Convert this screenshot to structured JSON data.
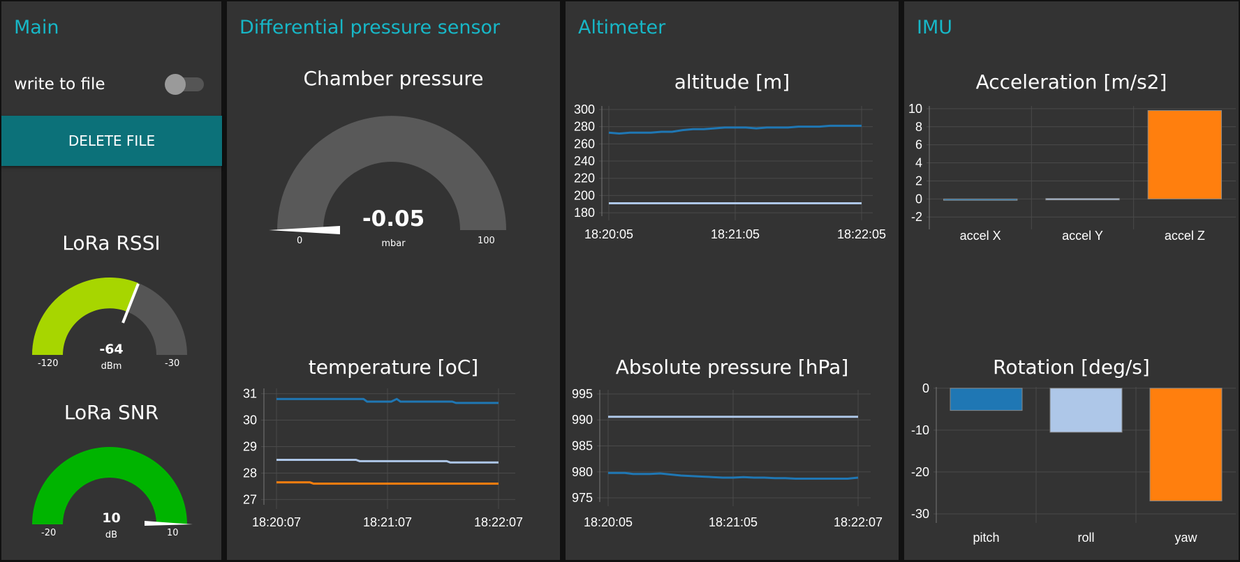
{
  "main": {
    "title": "Main",
    "toggle": {
      "label": "write to file",
      "on": false
    },
    "delete_button": "DELETE FILE",
    "rssi_gauge": {
      "title": "LoRa RSSI",
      "value": "-64",
      "unit": "dBm",
      "min": "-120",
      "max": "-30",
      "fill_color": "#a7d600",
      "track_color": "#555555"
    },
    "snr_gauge": {
      "title": "LoRa SNR",
      "value": "10",
      "unit": "dB",
      "min": "-20",
      "max": "10",
      "fill_color": "#00b400",
      "track_color": "#555555"
    }
  },
  "diff": {
    "title": "Differential pressure sensor",
    "pressure_gauge": {
      "title": "Chamber pressure",
      "value": "-0.05",
      "unit": "mbar",
      "min": "0",
      "max": "100",
      "track_color": "#595959"
    },
    "temperature_chart_title": "temperature [oC]"
  },
  "alt": {
    "title": "Altimeter",
    "altitude_chart_title": "altitude [m]",
    "pressure_chart_title": "Absolute pressure [hPa]"
  },
  "imu": {
    "title": "IMU",
    "accel_chart_title": "Acceleration [m/s2]",
    "rotation_chart_title": "Rotation [deg/s]"
  },
  "colors": {
    "accent": "#17b7c7",
    "button": "#0c7179",
    "series1": "#1f77b4",
    "series2": "#aec7e8",
    "series3": "#ff7f0e"
  },
  "chart_data": [
    {
      "id": "temperature",
      "type": "line",
      "title": "temperature [oC]",
      "ylim": [
        26.8,
        31.2
      ],
      "yticks": [
        27,
        28,
        29,
        30,
        31
      ],
      "xticks": [
        "18:20:07",
        "18:21:07",
        "18:22:07"
      ],
      "series": [
        {
          "color": "#1f77b4",
          "x": [
            0,
            47,
            49,
            62,
            65,
            67,
            95,
            97,
            120
          ],
          "values": [
            30.8,
            30.8,
            30.7,
            30.7,
            30.8,
            30.7,
            30.7,
            30.65,
            30.65
          ]
        },
        {
          "color": "#aec7e8",
          "x": [
            0,
            43,
            45,
            92,
            94,
            120
          ],
          "values": [
            28.5,
            28.5,
            28.45,
            28.45,
            28.4,
            28.4
          ]
        },
        {
          "color": "#ff7f0e",
          "x": [
            0,
            18,
            20,
            120
          ],
          "values": [
            27.65,
            27.65,
            27.6,
            27.6
          ]
        }
      ]
    },
    {
      "id": "altitude",
      "type": "line",
      "title": "altitude [m]",
      "ylim": [
        176,
        304
      ],
      "yticks": [
        180,
        200,
        220,
        240,
        260,
        280,
        300
      ],
      "xticks": [
        "18:20:05",
        "18:21:05",
        "18:22:05"
      ],
      "series": [
        {
          "color": "#1f77b4",
          "x": [
            0,
            5,
            10,
            15,
            20,
            25,
            30,
            35,
            40,
            45,
            50,
            55,
            60,
            65,
            70,
            75,
            80,
            85,
            90,
            95,
            100,
            105,
            110,
            115,
            120
          ],
          "values": [
            273,
            272,
            273,
            273,
            273,
            274,
            274,
            276,
            277,
            277,
            278,
            279,
            279,
            279,
            278,
            279,
            279,
            279,
            280,
            280,
            280,
            281,
            281,
            281,
            281
          ]
        },
        {
          "color": "#aec7e8",
          "x": [
            0,
            120
          ],
          "values": [
            191,
            191
          ]
        }
      ]
    },
    {
      "id": "absolute_pressure",
      "type": "line",
      "title": "Absolute pressure [hPa]",
      "ylim": [
        974.2,
        995.8
      ],
      "yticks": [
        975,
        980,
        985,
        990,
        995
      ],
      "xticks": [
        "18:20:05",
        "18:21:05",
        "18:22:07"
      ],
      "series": [
        {
          "color": "#1f77b4",
          "x": [
            0,
            8,
            12,
            20,
            25,
            30,
            35,
            40,
            45,
            50,
            55,
            60,
            65,
            70,
            75,
            80,
            85,
            90,
            95,
            100,
            105,
            110,
            115,
            120
          ],
          "values": [
            979.8,
            979.8,
            979.6,
            979.6,
            979.7,
            979.5,
            979.3,
            979.2,
            979.1,
            979.0,
            978.9,
            978.9,
            979.0,
            978.9,
            978.9,
            978.8,
            978.8,
            978.7,
            978.7,
            978.7,
            978.7,
            978.7,
            978.7,
            978.9
          ]
        },
        {
          "color": "#aec7e8",
          "x": [
            0,
            120
          ],
          "values": [
            990.6,
            990.6
          ]
        }
      ]
    },
    {
      "id": "acceleration",
      "type": "bar",
      "title": "Acceleration [m/s2]",
      "categories": [
        "accel X",
        "accel Y",
        "accel Z"
      ],
      "values": [
        -0.1,
        0.05,
        9.8
      ],
      "colors": [
        "#1f77b4",
        "#aec7e8",
        "#ff7f0e"
      ],
      "ylim": [
        -2.6,
        10.3
      ],
      "yticks": [
        -2,
        0,
        2,
        4,
        6,
        8,
        10
      ]
    },
    {
      "id": "rotation",
      "type": "bar",
      "title": "Rotation [deg/s]",
      "categories": [
        "pitch",
        "roll",
        "yaw"
      ],
      "values": [
        -5.3,
        -10.5,
        -26.9
      ],
      "colors": [
        "#1f77b4",
        "#aec7e8",
        "#ff7f0e"
      ],
      "ylim": [
        -30.5,
        0.3
      ],
      "yticks": [
        0,
        -10,
        -20,
        -30
      ]
    }
  ]
}
